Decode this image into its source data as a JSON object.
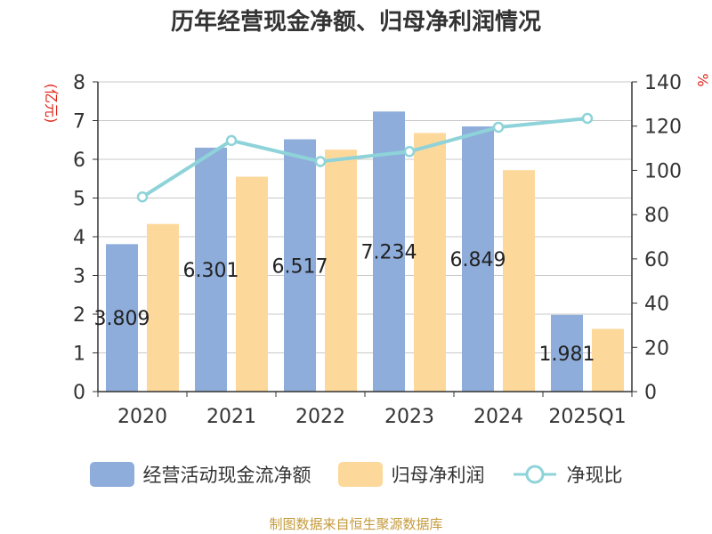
{
  "title": "历年经营现金净额、归母净利润情况",
  "source": "制图数据来自恒生聚源数据库",
  "chart_data": {
    "type": "bar",
    "categories": [
      "2020",
      "2021",
      "2022",
      "2023",
      "2024",
      "2025Q1"
    ],
    "series": [
      {
        "name": "经营活动现金流净额",
        "type": "bar",
        "axis": "left",
        "color": "#8eaddb",
        "values": [
          3.809,
          6.301,
          6.517,
          7.234,
          6.849,
          1.981
        ],
        "data_labels": [
          "3.809",
          "6.301",
          "6.517",
          "7.234",
          "6.849",
          "1.981"
        ]
      },
      {
        "name": "归母净利润",
        "type": "bar",
        "axis": "left",
        "color": "#fdd89b",
        "values": [
          4.33,
          5.55,
          6.25,
          6.68,
          5.72,
          1.62
        ]
      },
      {
        "name": "净现比",
        "type": "line",
        "axis": "right",
        "color": "#8ed3d9",
        "values": [
          88,
          113.5,
          104,
          108.5,
          119.5,
          123.5
        ]
      }
    ],
    "y_left": {
      "label": "(亿元)",
      "min": 0,
      "max": 8,
      "ticks": [
        "0",
        "1",
        "2",
        "3",
        "4",
        "5",
        "6",
        "7",
        "8"
      ]
    },
    "y_right": {
      "label": "%",
      "min": 0,
      "max": 140,
      "ticks": [
        "0",
        "20",
        "40",
        "60",
        "80",
        "100",
        "120",
        "140"
      ]
    },
    "grid": true,
    "legend_position": "bottom"
  }
}
